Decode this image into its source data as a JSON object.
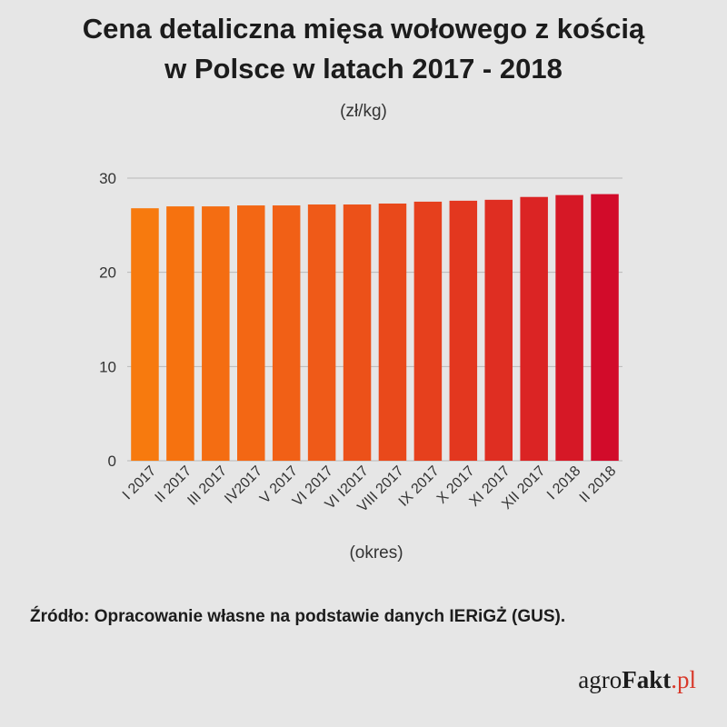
{
  "header": {
    "title_line1": "Cena detaliczna mięsa wołowego z kością",
    "title_line2": "w Polsce w latach 2017 - 2018",
    "unit": "(zł/kg)"
  },
  "chart_data": {
    "type": "bar",
    "title": "Cena detaliczna mięsa wołowego z kością w Polsce w latach 2017 - 2018",
    "ylabel": "(zł/kg)",
    "xlabel": "(okres)",
    "ylim": [
      0,
      30
    ],
    "yticks": [
      0,
      10,
      20,
      30
    ],
    "grid": true,
    "categories": [
      "I 2017",
      "II 2017",
      "III 2017",
      "IV2017",
      "V 2017",
      "VI 2017",
      "VI I2017",
      "VIII 2017",
      "IX 2017",
      "X 2017",
      "XI 2017",
      "XII 2017",
      "I 2018",
      "II 2018"
    ],
    "values": [
      26.8,
      27.0,
      27.0,
      27.1,
      27.1,
      27.2,
      27.2,
      27.3,
      27.5,
      27.6,
      27.7,
      28.0,
      28.2,
      28.3
    ],
    "bar_colors": [
      "#f77a0e",
      "#f6720f",
      "#f46d12",
      "#f36714",
      "#f16016",
      "#ef5a18",
      "#ec5119",
      "#e9491b",
      "#e6401d",
      "#e3371f",
      "#df2e22",
      "#db2424",
      "#d61826",
      "#d20b2a"
    ]
  },
  "footer": {
    "source": "Źródło: Opracowanie własne na podstawie danych IERiGŻ (GUS).",
    "logo_part1": "agro",
    "logo_part2": "Fakt",
    "logo_part3": ".pl"
  }
}
